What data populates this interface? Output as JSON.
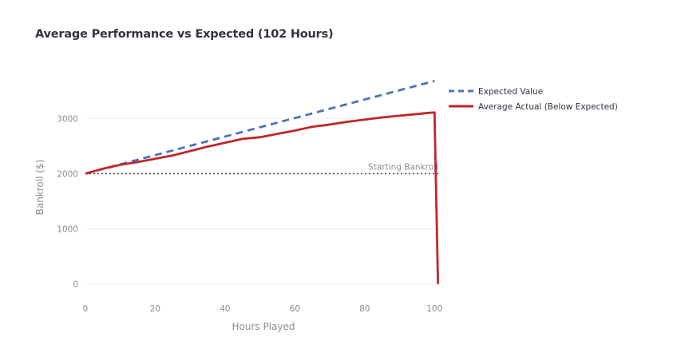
{
  "chart_data": {
    "type": "line",
    "title": "Average Performance vs Expected (102 Hours)",
    "xlabel": "Hours Played",
    "ylabel": "Bankroll ($)",
    "xlim": [
      0,
      102
    ],
    "ylim": [
      -50,
      3700
    ],
    "x_ticks": [
      0,
      20,
      40,
      60,
      80,
      100
    ],
    "y_ticks": [
      0,
      1000,
      2000,
      3000
    ],
    "grid": true,
    "legend_position": "top-right",
    "series": [
      {
        "name": "Expected Value",
        "color": "#4a74b4",
        "dash": "dashed",
        "x": [
          0,
          100
        ],
        "y": [
          2000,
          3680
        ]
      },
      {
        "name": "Average Actual (Below Expected)",
        "color": "#c0262d",
        "dash": "solid",
        "x": [
          0,
          5,
          10,
          15,
          20,
          25,
          30,
          35,
          40,
          45,
          50,
          55,
          60,
          65,
          70,
          75,
          80,
          85,
          90,
          95,
          98,
          100,
          101
        ],
        "y": [
          2000,
          2090,
          2160,
          2210,
          2270,
          2330,
          2410,
          2490,
          2560,
          2630,
          2660,
          2720,
          2780,
          2850,
          2890,
          2940,
          2980,
          3020,
          3050,
          3080,
          3100,
          3110,
          0
        ]
      }
    ],
    "annotations": [
      {
        "text": "Starting Bankroll",
        "y": 2000,
        "line": "dotted",
        "color": "#555555"
      }
    ]
  }
}
